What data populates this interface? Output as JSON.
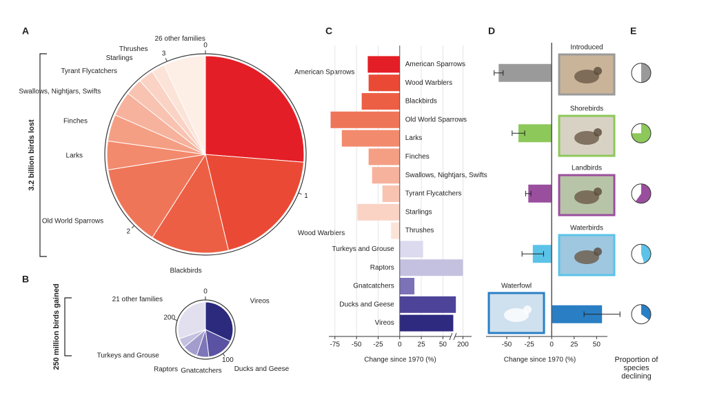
{
  "panel_labels": [
    "A",
    "B",
    "C",
    "D",
    "E"
  ],
  "chart_data": [
    {
      "type": "pie",
      "axis_label": "3.2 billion birds lost",
      "categories": [
        "American Sparrows",
        "Wood Warblers",
        "Blackbirds",
        "Old World Sparrows",
        "Larks",
        "Finches",
        "Swallows, Nightjars, Swifts",
        "Tyrant Flycatchers",
        "Starlings",
        "Thrushes",
        "26 other families"
      ],
      "values": [
        0.84,
        0.64,
        0.41,
        0.43,
        0.15,
        0.14,
        0.13,
        0.09,
        0.08,
        0.07,
        0.22
      ],
      "colors": [
        "#e41e26",
        "#ea4a35",
        "#ed5f44",
        "#ef7558",
        "#f28a6d",
        "#f49f84",
        "#f6b29c",
        "#f8c3b1",
        "#fad3c5",
        "#fce3d8",
        "#fdeee6"
      ],
      "ticks": [
        0,
        1,
        2,
        3
      ]
    },
    {
      "type": "pie",
      "axis_label": "250 million birds gained",
      "categories": [
        "Vireos",
        "Ducks and Geese",
        "Gnatcatchers",
        "Raptors",
        "Turkeys and Grouse",
        "21 other families"
      ],
      "values": [
        80,
        40,
        18,
        22,
        14,
        76
      ],
      "colors": [
        "#2b2a7c",
        "#5a52a3",
        "#7d76b8",
        "#a29dcc",
        "#c4c0e0",
        "#e2e0ef"
      ],
      "ticks": [
        0,
        100,
        200
      ]
    },
    {
      "type": "bar",
      "xlabel": "Change since 1970 (%)",
      "categories": [
        "American Sparrows",
        "Wood Warblers",
        "Blackbirds",
        "Old World Sparrows",
        "Larks",
        "Finches",
        "Swallows, Nightjars, Swifts",
        "Tyrant Flycatchers",
        "Starlings",
        "Thrushes",
        "Turkeys and Grouse",
        "Raptors",
        "Gnatcatchers",
        "Ducks and Geese",
        "Vireos"
      ],
      "values": [
        -37,
        -36,
        -44,
        -80,
        -67,
        -36,
        -32,
        -20,
        -49,
        -10,
        27,
        200,
        17,
        65,
        62
      ],
      "colors": [
        "#e41e26",
        "#ea4a35",
        "#ed5f44",
        "#ef7558",
        "#f28a6d",
        "#f49f84",
        "#f6b29c",
        "#f8c3b1",
        "#fad3c5",
        "#fce3d8",
        "#dcdaee",
        "#c4c1e0",
        "#7b72b8",
        "#4d449a",
        "#2e2a80"
      ],
      "xlim": [
        -82,
        210
      ],
      "xbreak": [
        60,
        190
      ],
      "xticks": [
        -75,
        -50,
        -25,
        0,
        25,
        50,
        200
      ],
      "grid": true
    },
    {
      "type": "bar",
      "xlabel": "Change since 1970 (%)",
      "categories": [
        "Introduced",
        "Shorebirds",
        "Landbirds",
        "Waterbirds",
        "Waterfowl"
      ],
      "values": [
        -59,
        -37,
        -26,
        -21,
        56
      ],
      "errors": [
        5,
        7,
        3,
        12,
        20
      ],
      "colors": [
        "#9a9a9a",
        "#8dc85a",
        "#9a4f9e",
        "#5bc3e8",
        "#2a7fc4"
      ],
      "xlim": [
        -73,
        62
      ],
      "xticks": [
        -50,
        -25,
        0,
        25,
        50
      ]
    },
    {
      "type": "pies",
      "xlabel": "Proportion of species declining",
      "values": [
        0.5,
        0.75,
        0.6,
        0.45,
        0.35
      ],
      "colors": [
        "#9a9a9a",
        "#8dc85a",
        "#9a4f9e",
        "#5bc3e8",
        "#2a7fc4"
      ]
    }
  ]
}
